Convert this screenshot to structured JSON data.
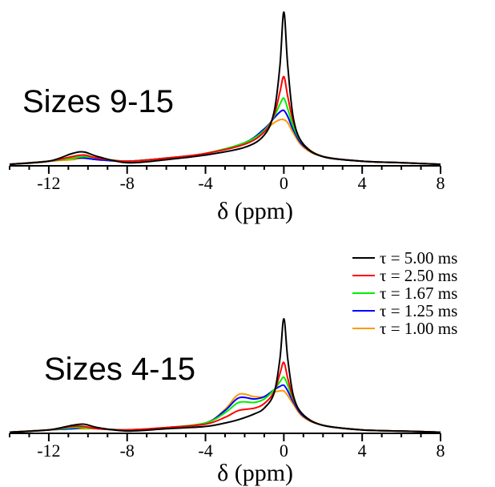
{
  "chart_data": [
    {
      "type": "line",
      "panel_label": "Sizes 9-15",
      "xlabel": "δ (ppm)",
      "ylabel": "",
      "xlim": [
        -14,
        8
      ],
      "ylim": [
        0,
        1
      ],
      "x_ticks": [
        -12,
        -8,
        -4,
        0,
        4,
        8
      ],
      "x_tick_labels": [
        "-12",
        "-8",
        "-4",
        "0",
        "4",
        "8"
      ],
      "grid": false,
      "series": [
        {
          "name": "τ = 5.00 ms",
          "color": "#000000",
          "x": [
            -14,
            -12,
            -10.8,
            -10.2,
            -9.5,
            -8,
            -6,
            -4,
            -2,
            -1,
            -0.5,
            -0.2,
            0,
            0.2,
            0.5,
            1,
            2,
            4,
            6,
            8
          ],
          "y": [
            0.01,
            0.03,
            0.08,
            0.09,
            0.06,
            0.02,
            0.04,
            0.07,
            0.12,
            0.2,
            0.35,
            0.65,
            1.0,
            0.65,
            0.3,
            0.14,
            0.06,
            0.03,
            0.02,
            0.01
          ]
        },
        {
          "name": "τ = 2.50 ms",
          "color": "#ff0000",
          "x": [
            -14,
            -12,
            -10.8,
            -10.2,
            -9.5,
            -8,
            -6,
            -4,
            -2,
            -1,
            -0.5,
            -0.2,
            0,
            0.2,
            0.5,
            1,
            2,
            4,
            6,
            8
          ],
          "y": [
            0.01,
            0.03,
            0.06,
            0.07,
            0.05,
            0.03,
            0.05,
            0.08,
            0.14,
            0.22,
            0.33,
            0.48,
            0.58,
            0.45,
            0.28,
            0.14,
            0.06,
            0.03,
            0.02,
            0.01
          ]
        },
        {
          "name": "τ = 1.67 ms",
          "color": "#00ee00",
          "x": [
            -14,
            -12,
            -10.8,
            -10.2,
            -9.5,
            -8,
            -6,
            -4,
            -2,
            -1,
            -0.5,
            -0.2,
            0,
            0.2,
            0.5,
            1,
            2,
            4,
            6,
            8
          ],
          "y": [
            0.01,
            0.03,
            0.05,
            0.06,
            0.05,
            0.03,
            0.05,
            0.08,
            0.15,
            0.23,
            0.32,
            0.4,
            0.44,
            0.37,
            0.25,
            0.14,
            0.06,
            0.03,
            0.02,
            0.01
          ]
        },
        {
          "name": "τ = 1.25 ms",
          "color": "#0000ff",
          "x": [
            -14,
            -12,
            -10.8,
            -10.2,
            -9.5,
            -8,
            -6,
            -4,
            -2,
            -1,
            -0.5,
            -0.2,
            0,
            0.2,
            0.5,
            1,
            2,
            4,
            6,
            8
          ],
          "y": [
            0.01,
            0.03,
            0.05,
            0.05,
            0.04,
            0.03,
            0.05,
            0.08,
            0.15,
            0.24,
            0.31,
            0.35,
            0.36,
            0.32,
            0.23,
            0.13,
            0.06,
            0.03,
            0.02,
            0.01
          ]
        },
        {
          "name": "τ = 1.00 ms",
          "color": "#ff9900",
          "x": [
            -14,
            -12,
            -10.8,
            -10.2,
            -9.5,
            -8,
            -6,
            -4,
            -2,
            -1,
            -0.5,
            -0.2,
            0,
            0.2,
            0.5,
            1,
            2,
            4,
            6,
            8
          ],
          "y": [
            0.01,
            0.03,
            0.04,
            0.05,
            0.04,
            0.03,
            0.05,
            0.08,
            0.15,
            0.23,
            0.28,
            0.3,
            0.3,
            0.28,
            0.21,
            0.12,
            0.06,
            0.03,
            0.02,
            0.01
          ]
        }
      ]
    },
    {
      "type": "line",
      "panel_label": "Sizes 4-15",
      "xlabel": "δ (ppm)",
      "ylabel": "",
      "xlim": [
        -14,
        8
      ],
      "ylim": [
        0,
        1
      ],
      "x_ticks": [
        -12,
        -8,
        -4,
        0,
        4,
        8
      ],
      "x_tick_labels": [
        "-12",
        "-8",
        "-4",
        "0",
        "4",
        "8"
      ],
      "grid": false,
      "legend_position": "top-right",
      "series": [
        {
          "name": "τ = 5.00 ms",
          "color": "#000000",
          "x": [
            -14,
            -12,
            -10.8,
            -10.2,
            -9.5,
            -8,
            -6,
            -4,
            -3,
            -2.3,
            -1.5,
            -1,
            -0.5,
            -0.2,
            0,
            0.2,
            0.5,
            1,
            2,
            4,
            6,
            8
          ],
          "y": [
            0.01,
            0.03,
            0.07,
            0.08,
            0.05,
            0.02,
            0.04,
            0.06,
            0.09,
            0.12,
            0.17,
            0.22,
            0.35,
            0.65,
            1.0,
            0.65,
            0.32,
            0.16,
            0.07,
            0.03,
            0.02,
            0.01
          ]
        },
        {
          "name": "τ = 2.50 ms",
          "color": "#ff0000",
          "x": [
            -14,
            -12,
            -10.8,
            -10.2,
            -9.5,
            -8,
            -6,
            -4,
            -3,
            -2.3,
            -1.5,
            -1,
            -0.5,
            -0.2,
            0,
            0.2,
            0.5,
            1,
            2,
            4,
            6,
            8
          ],
          "y": [
            0.01,
            0.03,
            0.06,
            0.06,
            0.04,
            0.03,
            0.05,
            0.08,
            0.14,
            0.2,
            0.22,
            0.26,
            0.36,
            0.52,
            0.62,
            0.48,
            0.3,
            0.16,
            0.07,
            0.03,
            0.02,
            0.01
          ]
        },
        {
          "name": "τ = 1.67 ms",
          "color": "#00ee00",
          "x": [
            -14,
            -12,
            -10.8,
            -10.2,
            -9.5,
            -8,
            -6,
            -4,
            -3,
            -2.3,
            -1.5,
            -1,
            -0.5,
            -0.2,
            0,
            0.2,
            0.5,
            1,
            2,
            4,
            6,
            8
          ],
          "y": [
            0.01,
            0.03,
            0.05,
            0.05,
            0.04,
            0.03,
            0.05,
            0.09,
            0.18,
            0.27,
            0.27,
            0.3,
            0.38,
            0.45,
            0.49,
            0.42,
            0.29,
            0.16,
            0.07,
            0.03,
            0.02,
            0.01
          ]
        },
        {
          "name": "τ = 1.25 ms",
          "color": "#0000ff",
          "x": [
            -14,
            -12,
            -10.8,
            -10.2,
            -9.5,
            -8,
            -6,
            -4,
            -3,
            -2.3,
            -1.5,
            -1,
            -0.5,
            -0.2,
            0,
            0.2,
            0.5,
            1,
            2,
            4,
            6,
            8
          ],
          "y": [
            0.01,
            0.03,
            0.04,
            0.05,
            0.04,
            0.03,
            0.05,
            0.09,
            0.2,
            0.31,
            0.3,
            0.32,
            0.38,
            0.41,
            0.42,
            0.37,
            0.27,
            0.15,
            0.07,
            0.03,
            0.02,
            0.01
          ]
        },
        {
          "name": "τ = 1.00 ms",
          "color": "#ff9900",
          "x": [
            -14,
            -12,
            -10.8,
            -10.2,
            -9.5,
            -8,
            -6,
            -4,
            -3,
            -2.3,
            -1.5,
            -1,
            -0.5,
            -0.2,
            0,
            0.2,
            0.5,
            1,
            2,
            4,
            6,
            8
          ],
          "y": [
            0.01,
            0.03,
            0.04,
            0.04,
            0.04,
            0.03,
            0.05,
            0.09,
            0.21,
            0.34,
            0.32,
            0.32,
            0.36,
            0.37,
            0.37,
            0.33,
            0.25,
            0.14,
            0.07,
            0.03,
            0.02,
            0.01
          ]
        }
      ]
    }
  ]
}
